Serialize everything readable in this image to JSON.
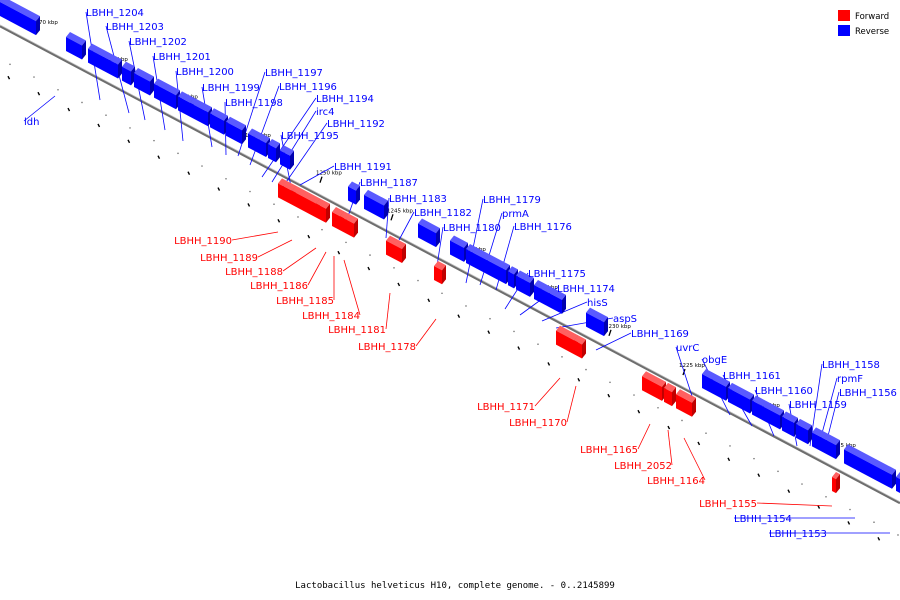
{
  "caption": "Lactobacillus helveticus H10, complete genome. - 0..2145899",
  "colors": {
    "forward": "#ff0000",
    "reverse": "#0000ff",
    "backbone": "#777777"
  },
  "legend": [
    {
      "label": "Forward",
      "color": "#ff0000"
    },
    {
      "label": "Reverse",
      "color": "#0000ff"
    }
  ],
  "ticks": [
    "1270 kbp",
    "1265 kbp",
    "1260 kbp",
    "1255 kbp",
    "1250 kbp",
    "1245 kbp",
    "1240 kbp",
    "1235 kbp",
    "1230 kbp",
    "1225 kbp",
    "1220 kbp",
    "1215 kbp"
  ],
  "genes": {
    "reverse": [
      "LBHH_1204",
      "LBHH_1203",
      "LBHH_1202",
      "LBHH_1201",
      "LBHH_1200",
      "LBHH_1199",
      "LBHH_1198",
      "LBHH_1197",
      "LBHH_1196",
      "LBHH_1194",
      "irc4",
      "LBHH_1192",
      "LBHH_1195",
      "LBHH_1191",
      "LBHH_1187",
      "LBHH_1183",
      "LBHH_1182",
      "LBHH_1180",
      "LBHH_1179",
      "prmA",
      "LBHH_1176",
      "LBHH_1175",
      "LBHH_1174",
      "hisS",
      "aspS",
      "LBHH_1169",
      "uvrC",
      "obgE",
      "LBHH_1161",
      "LBHH_1160",
      "LBHH_1159",
      "LBHH_1158",
      "rpmF",
      "LBHH_1156",
      "ldh",
      "LBHH_1154",
      "LBHH_1153"
    ],
    "forward": [
      "LBHH_1190",
      "LBHH_1189",
      "LBHH_1188",
      "LBHH_1186",
      "LBHH_1185",
      "LBHH_1184",
      "LBHH_1181",
      "LBHH_1178",
      "LBHH_1171",
      "LBHH_1170",
      "LBHH_1165",
      "LBHH_2052",
      "LBHH_1164",
      "LBHH_1155"
    ]
  }
}
